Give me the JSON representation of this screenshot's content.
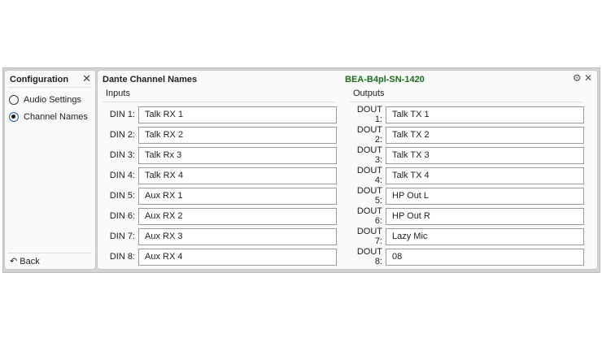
{
  "sidebar": {
    "title": "Configuration",
    "options": [
      {
        "label": "Audio Settings",
        "selected": false
      },
      {
        "label": "Channel Names",
        "selected": true
      }
    ],
    "back_label": "Back"
  },
  "main": {
    "title": "Dante Channel Names",
    "device": "BEA-B4pl-SN-1420",
    "device_color": "#1e6b1e"
  },
  "inputs": {
    "header": "Inputs",
    "rows": [
      {
        "label": "DIN 1:",
        "value": "Talk RX 1"
      },
      {
        "label": "DIN 2:",
        "value": "Talk RX 2"
      },
      {
        "label": "DIN 3:",
        "value": "Talk Rx 3"
      },
      {
        "label": "DIN 4:",
        "value": "Talk RX 4"
      },
      {
        "label": "DIN 5:",
        "value": "Aux RX 1"
      },
      {
        "label": "DIN 6:",
        "value": "Aux RX 2"
      },
      {
        "label": "DIN 7:",
        "value": "Aux RX 3"
      },
      {
        "label": "DIN 8:",
        "value": "Aux RX 4"
      }
    ]
  },
  "outputs": {
    "header": "Outputs",
    "rows": [
      {
        "label": "DOUT 1:",
        "value": "Talk TX 1"
      },
      {
        "label": "DOUT 2:",
        "value": "Talk TX 2"
      },
      {
        "label": "DOUT 3:",
        "value": "Talk TX 3"
      },
      {
        "label": "DOUT 4:",
        "value": "Talk TX 4"
      },
      {
        "label": "DOUT 5:",
        "value": "HP Out L"
      },
      {
        "label": "DOUT 6:",
        "value": "HP Out R"
      },
      {
        "label": "DOUT 7:",
        "value": "Lazy Mic"
      },
      {
        "label": "DOUT 8:",
        "value": "08"
      }
    ]
  }
}
